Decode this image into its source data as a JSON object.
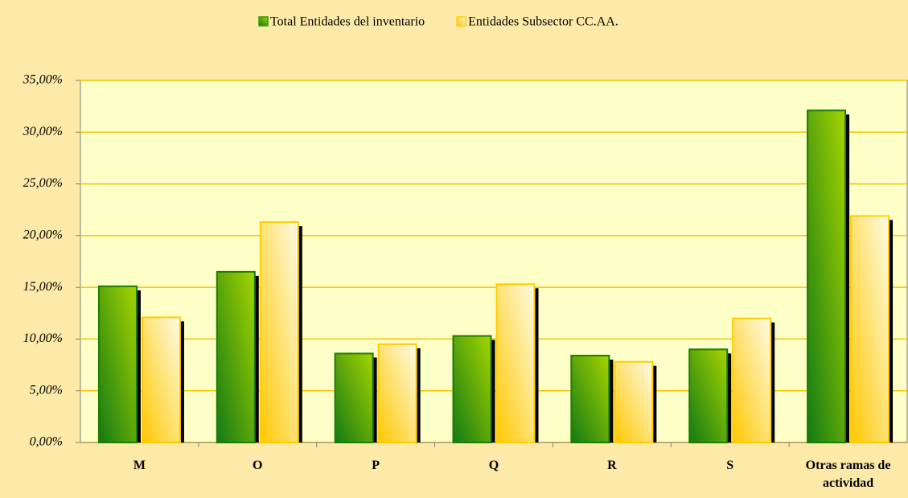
{
  "chart_data": {
    "type": "bar",
    "categories": [
      "M",
      "O",
      "P",
      "Q",
      "R",
      "S",
      "Otras ramas de actividad"
    ],
    "series": [
      {
        "name": "Total Entidades del inventario",
        "color": "#339900",
        "values": [
          15.1,
          16.5,
          8.6,
          10.3,
          8.4,
          9.0,
          32.1
        ]
      },
      {
        "name": "Entidades Subsector CC.AA.",
        "color": "#ffcc00",
        "values": [
          12.1,
          21.3,
          9.5,
          15.3,
          7.8,
          12.0,
          21.9
        ]
      }
    ],
    "ylim": [
      0,
      35
    ],
    "yticks": [
      {
        "value": 0,
        "label": "0,00%"
      },
      {
        "value": 5,
        "label": "5,00%"
      },
      {
        "value": 10,
        "label": "10,00%"
      },
      {
        "value": 15,
        "label": "15,00%"
      },
      {
        "value": 20,
        "label": "20,00%"
      },
      {
        "value": 25,
        "label": "25,00%"
      },
      {
        "value": 30,
        "label": "30,00%"
      },
      {
        "value": 35,
        "label": "35,00%"
      }
    ],
    "grid": true,
    "legend": "top"
  }
}
